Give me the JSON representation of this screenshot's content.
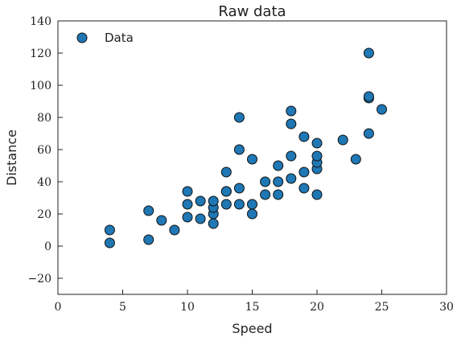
{
  "chart_data": {
    "type": "scatter",
    "title": "Raw data",
    "xlabel": "Speed",
    "ylabel": "Distance",
    "xlim": [
      0,
      30
    ],
    "ylim": [
      -30,
      140
    ],
    "xticks": [
      0,
      5,
      10,
      15,
      20,
      25,
      30
    ],
    "yticks": [
      -20,
      0,
      20,
      40,
      60,
      80,
      100,
      120,
      140
    ],
    "grid": false,
    "legend_position": "top-left",
    "series": [
      {
        "name": "Data",
        "color": "#1f77b4",
        "points": [
          [
            4,
            2
          ],
          [
            4,
            10
          ],
          [
            7,
            4
          ],
          [
            7,
            22
          ],
          [
            8,
            16
          ],
          [
            9,
            10
          ],
          [
            10,
            18
          ],
          [
            10,
            26
          ],
          [
            10,
            34
          ],
          [
            11,
            17
          ],
          [
            11,
            28
          ],
          [
            12,
            14
          ],
          [
            12,
            20
          ],
          [
            12,
            24
          ],
          [
            12,
            28
          ],
          [
            13,
            26
          ],
          [
            13,
            34
          ],
          [
            13,
            34
          ],
          [
            13,
            46
          ],
          [
            14,
            26
          ],
          [
            14,
            36
          ],
          [
            14,
            60
          ],
          [
            14,
            80
          ],
          [
            15,
            20
          ],
          [
            15,
            26
          ],
          [
            15,
            54
          ],
          [
            16,
            32
          ],
          [
            16,
            40
          ],
          [
            17,
            32
          ],
          [
            17,
            40
          ],
          [
            17,
            50
          ],
          [
            18,
            42
          ],
          [
            18,
            56
          ],
          [
            18,
            76
          ],
          [
            18,
            84
          ],
          [
            19,
            36
          ],
          [
            19,
            46
          ],
          [
            19,
            68
          ],
          [
            20,
            32
          ],
          [
            20,
            48
          ],
          [
            20,
            52
          ],
          [
            20,
            56
          ],
          [
            20,
            64
          ],
          [
            22,
            66
          ],
          [
            23,
            54
          ],
          [
            24,
            70
          ],
          [
            24,
            92
          ],
          [
            24,
            93
          ],
          [
            24,
            120
          ],
          [
            25,
            85
          ]
        ]
      }
    ]
  }
}
